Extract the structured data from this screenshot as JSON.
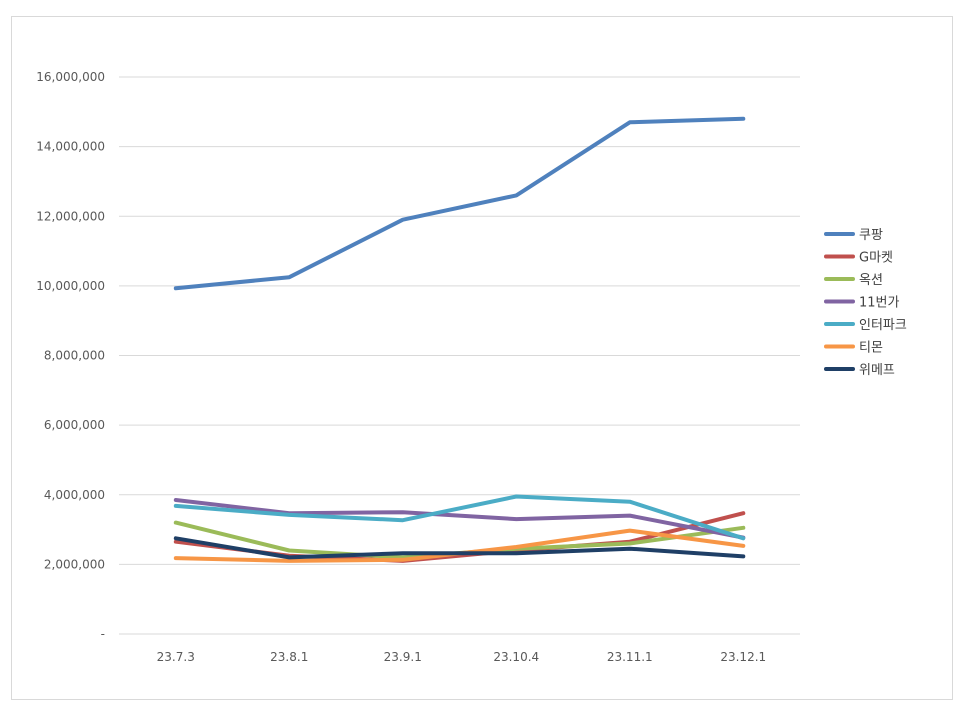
{
  "chart_data": {
    "type": "line",
    "title": "",
    "xlabel": "",
    "ylabel": "",
    "categories": [
      "23.7.3",
      "23.8.1",
      "23.9.1",
      "23.10.4",
      "23.11.1",
      "23.12.1"
    ],
    "ylim": [
      0,
      16000000
    ],
    "yticks": [
      0,
      2000000,
      4000000,
      6000000,
      8000000,
      10000000,
      12000000,
      14000000,
      16000000
    ],
    "ytick_labels": [
      "-",
      "2,000,000",
      "4,000,000",
      "6,000,000",
      "8,000,000",
      "10,000,000",
      "12,000,000",
      "14,000,000",
      "16,000,000"
    ],
    "grid": true,
    "legend_position": "right",
    "series": [
      {
        "name": "쿠팡",
        "color": "#4f81bd",
        "values": [
          9930000,
          10250000,
          11900000,
          12600000,
          14700000,
          14800000
        ]
      },
      {
        "name": "G마켓",
        "color": "#c0504d",
        "values": [
          2650000,
          2250000,
          2100000,
          2400000,
          2650000,
          3470000
        ]
      },
      {
        "name": "옥션",
        "color": "#9bbb59",
        "values": [
          3200000,
          2400000,
          2200000,
          2450000,
          2600000,
          3050000
        ]
      },
      {
        "name": "11번가",
        "color": "#8064a2",
        "values": [
          3850000,
          3470000,
          3500000,
          3300000,
          3400000,
          2770000
        ]
      },
      {
        "name": "인터파크",
        "color": "#4bacc6",
        "values": [
          3680000,
          3420000,
          3270000,
          3950000,
          3800000,
          2750000
        ]
      },
      {
        "name": "티몬",
        "color": "#f79646",
        "values": [
          2180000,
          2100000,
          2130000,
          2500000,
          2970000,
          2530000
        ]
      },
      {
        "name": "위메프",
        "color": "#1f3f66",
        "values": [
          2750000,
          2200000,
          2320000,
          2320000,
          2450000,
          2230000
        ]
      }
    ]
  }
}
